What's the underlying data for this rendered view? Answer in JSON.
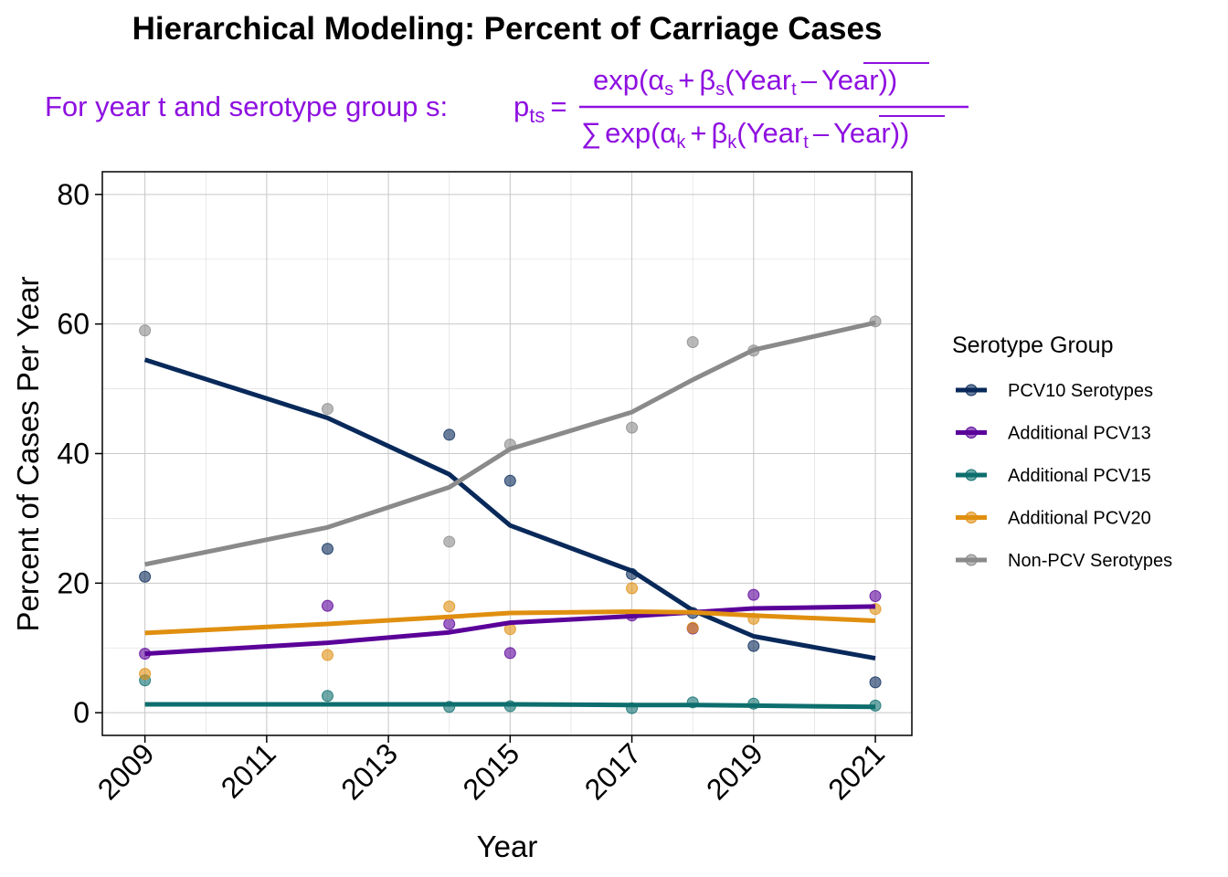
{
  "chart_data": {
    "type": "line",
    "title": "Hierarchical Modeling: Percent of Carriage Cases",
    "formula": {
      "prefix": "For year t and serotype group s:",
      "p": "p",
      "p_sub": "ts",
      "equals": "=",
      "numerator": {
        "exp": "exp(",
        "alpha": "α",
        "alpha_sub": "s",
        "plus": "+",
        "beta": "β",
        "beta_sub": "s",
        "open": "(",
        "year": "Year",
        "year_sub": "t",
        "minus": "–",
        "year_bar": "Year",
        "close": "))"
      },
      "denominator": {
        "sum": "∑",
        "exp": "exp(",
        "alpha": "α",
        "alpha_sub": "k",
        "plus": "+",
        "beta": "β",
        "beta_sub": "k",
        "open": "(",
        "year": "Year",
        "year_sub": "t",
        "minus": "–",
        "year_bar": "Year",
        "close": "))"
      }
    },
    "xlabel": "Year",
    "ylabel": "Percent of Cases Per Year",
    "xlim": [
      2008.3,
      2021.6
    ],
    "ylim": [
      -3.5,
      83.5
    ],
    "x_ticks": [
      "2009",
      "2011",
      "2013",
      "2015",
      "2017",
      "2019",
      "2021"
    ],
    "y_ticks": [
      "0",
      "20",
      "40",
      "60",
      "80"
    ],
    "grid": true,
    "legend_title": "Serotype Group",
    "legend_position": "right",
    "series": [
      {
        "name": "PCV10 Serotypes",
        "color": "#08295A",
        "fit_x": [
          2009,
          2012,
          2014,
          2015,
          2017,
          2018,
          2019,
          2021
        ],
        "fit_y": [
          54.5,
          45.5,
          36.8,
          28.9,
          21.9,
          15.8,
          11.8,
          8.4
        ],
        "points_x": [
          2009,
          2012,
          2014,
          2015,
          2017,
          2018,
          2019,
          2021
        ],
        "points_y": [
          21.0,
          25.3,
          42.9,
          35.8,
          21.4,
          15.4,
          10.3,
          4.7
        ]
      },
      {
        "name": "Additional PCV13",
        "color": "#5A0099",
        "fit_x": [
          2009,
          2012,
          2014,
          2015,
          2017,
          2018,
          2019,
          2021
        ],
        "fit_y": [
          9.1,
          10.8,
          12.4,
          13.9,
          14.9,
          15.5,
          16.1,
          16.4
        ],
        "points_x": [
          2009,
          2012,
          2014,
          2015,
          2017,
          2018,
          2019,
          2021
        ],
        "points_y": [
          9.1,
          16.5,
          13.7,
          9.2,
          15.0,
          13.0,
          18.2,
          18.0
        ]
      },
      {
        "name": "Additional PCV15",
        "color": "#0E6E6E",
        "fit_x": [
          2009,
          2012,
          2014,
          2015,
          2017,
          2018,
          2019,
          2021
        ],
        "fit_y": [
          1.3,
          1.3,
          1.3,
          1.3,
          1.2,
          1.2,
          1.1,
          0.9
        ],
        "points_x": [
          2009,
          2012,
          2014,
          2015,
          2017,
          2018,
          2019,
          2021
        ],
        "points_y": [
          5.0,
          2.6,
          0.9,
          1.0,
          0.7,
          1.6,
          1.4,
          1.1
        ]
      },
      {
        "name": "Additional PCV20",
        "color": "#E08F10",
        "fit_x": [
          2009,
          2012,
          2014,
          2015,
          2017,
          2018,
          2019,
          2021
        ],
        "fit_y": [
          12.3,
          13.7,
          14.8,
          15.4,
          15.6,
          15.5,
          15.0,
          14.2
        ],
        "points_x": [
          2009,
          2012,
          2014,
          2015,
          2017,
          2018,
          2019,
          2021
        ],
        "points_y": [
          6.0,
          8.9,
          16.4,
          12.9,
          19.2,
          13.1,
          14.5,
          16.0
        ]
      },
      {
        "name": "Non-PCV Serotypes",
        "color": "#8A8A8A",
        "fit_x": [
          2009,
          2012,
          2014,
          2015,
          2017,
          2018,
          2019,
          2021
        ],
        "fit_y": [
          22.9,
          28.6,
          34.8,
          40.7,
          46.4,
          51.4,
          56.0,
          60.2
        ],
        "points_x": [
          2009,
          2012,
          2014,
          2015,
          2017,
          2018,
          2019,
          2021
        ],
        "points_y": [
          59.0,
          46.9,
          26.4,
          41.4,
          44.0,
          57.2,
          55.9,
          60.4
        ]
      }
    ]
  }
}
